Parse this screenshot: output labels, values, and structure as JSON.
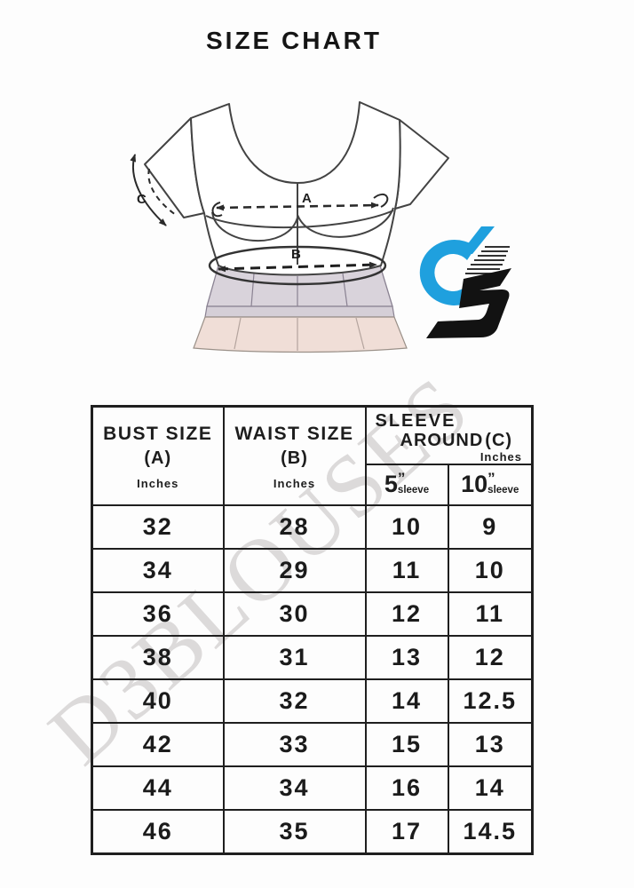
{
  "page": {
    "title": "SIZE CHART",
    "watermark": "D3BLOUSES"
  },
  "illustration": {
    "bust_label": "A",
    "waist_label": "B",
    "sleeve_label": "C"
  },
  "logo": {
    "name": "d3-brand-logo"
  },
  "colors": {
    "logo_blue": "#1fa0de",
    "logo_black": "#121212",
    "table_border": "#1f1f1f",
    "watermark_gray": "#dcdada",
    "torso_fill": "#d9d3db",
    "skirt_fill": "#f0ded7",
    "line_dark": "#3c3c3c"
  },
  "table": {
    "header": {
      "bust": {
        "title": "BUST SIZE",
        "code": "(A)",
        "unit": "Inches"
      },
      "waist": {
        "title": "WAIST SIZE",
        "code": "(B)",
        "unit": "Inches"
      },
      "sleeve": {
        "title_line1": "SLEEVE",
        "title_line2": "AROUND",
        "code": "(C)",
        "unit": "Inches",
        "subcolumns": [
          {
            "size": "5",
            "quote": "”",
            "label": "sleeve"
          },
          {
            "size": "10",
            "quote": "”",
            "label": "sleeve"
          }
        ]
      }
    },
    "rows": [
      [
        "32",
        "28",
        "10",
        "9"
      ],
      [
        "34",
        "29",
        "11",
        "10"
      ],
      [
        "36",
        "30",
        "12",
        "11"
      ],
      [
        "38",
        "31",
        "13",
        "12"
      ],
      [
        "40",
        "32",
        "14",
        "12.5"
      ],
      [
        "42",
        "33",
        "15",
        "13"
      ],
      [
        "44",
        "34",
        "16",
        "14"
      ],
      [
        "46",
        "35",
        "17",
        "14.5"
      ]
    ]
  },
  "chart_data": {
    "type": "table",
    "title": "SIZE CHART",
    "columns": [
      "BUST SIZE (A) Inches",
      "WAIST SIZE (B) Inches",
      "SLEEVE AROUND (C) Inches — 5” sleeve",
      "SLEEVE AROUND (C) Inches — 10” sleeve"
    ],
    "rows": [
      [
        32,
        28,
        10,
        9
      ],
      [
        34,
        29,
        11,
        10
      ],
      [
        36,
        30,
        12,
        11
      ],
      [
        38,
        31,
        13,
        12
      ],
      [
        40,
        32,
        14,
        12.5
      ],
      [
        42,
        33,
        15,
        13
      ],
      [
        44,
        34,
        16,
        14
      ],
      [
        46,
        35,
        17,
        14.5
      ]
    ]
  }
}
